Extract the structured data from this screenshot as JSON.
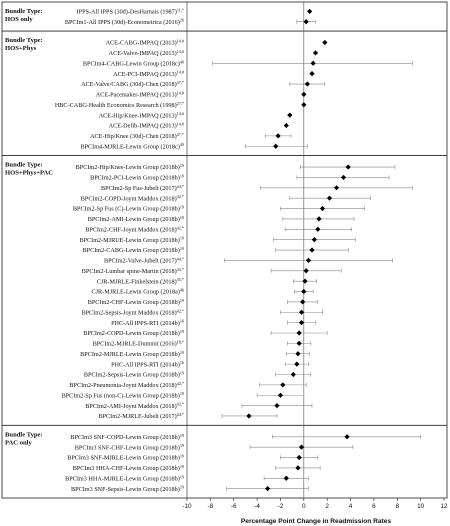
{
  "chart_data": {
    "type": "scatter",
    "subtype": "forest-plot",
    "xlabel": "Percentage Point Change in Readmission Rates",
    "xlim": [
      -10,
      12
    ],
    "xticks": [
      -10,
      -8,
      -6,
      -4,
      -2,
      0,
      2,
      4,
      6,
      8,
      10,
      12
    ],
    "reference_line_x": 0,
    "grid": false,
    "groups": [
      {
        "label_line1": "Bundle Type:",
        "label_line2": "HOS only",
        "rows": [
          {
            "label": "IPPS-All IPPS (30d)-DesHarnais (1987)",
            "sup": "11,*",
            "value": 0.5,
            "ci": null
          },
          {
            "label": "BPCIm1-All IPPS (30d)-Econometrica (2016)",
            "sup": "26",
            "value": 0.2,
            "ci": [
              -0.6,
              1.0
            ]
          }
        ]
      },
      {
        "label_line1": "Bundle Type:",
        "label_line2": "HOS+Phys",
        "rows": [
          {
            "label": "ACE-CABG-IMPAQ (2013)",
            "sup": "14,#",
            "value": 1.8,
            "ci": null
          },
          {
            "label": "ACE-Valve-IMPAQ (2013)",
            "sup": "14,#",
            "value": 1.0,
            "ci": null
          },
          {
            "label": "BPCIm4-CABG-Lewin Group (2018c)",
            "sup": "40",
            "value": 0.8,
            "ci": [
              -7.8,
              9.3
            ]
          },
          {
            "label": "ACE-PCI-IMPAQ (2013)",
            "sup": "14,#",
            "value": 0.7,
            "ci": null
          },
          {
            "label": "ACE-Valve/CABG (30d)-Chen (2018)",
            "sup": "47,*",
            "value": 0.3,
            "ci": [
              -1.2,
              1.8
            ]
          },
          {
            "label": "ACE-Pacemaker-IMPAQ (2013)",
            "sup": "14,#",
            "value": 0.0,
            "ci": null
          },
          {
            "label": "HBC-CABG-Health Economics Research (1998)",
            "sup": "27,*",
            "value": 0.0,
            "ci": null
          },
          {
            "label": "ACE-Hip/Knee-IMPAQ (2013)",
            "sup": "14,#",
            "value": -1.2,
            "ci": null
          },
          {
            "label": "ACE-Defib-IMPAQ (2013)",
            "sup": "14,#",
            "value": -1.5,
            "ci": null
          },
          {
            "label": "ACE-Hip/Knee (30d)-Chen (2018)",
            "sup": "47,*",
            "value": -2.2,
            "ci": [
              -3.3,
              -1.1
            ]
          },
          {
            "label": "BPCIm4-MJRLE-Lewin Group (2018c)",
            "sup": "40",
            "value": -2.4,
            "ci": [
              -5.0,
              0.3
            ]
          }
        ]
      },
      {
        "label_line1": "Bundle Type:",
        "label_line2": "HOS+Phys+PAC",
        "rows": [
          {
            "label": "BPCIm2-Hip/Knee-Lewin Group (2018b)",
            "sup": "19",
            "value": 3.8,
            "ci": [
              -0.3,
              7.8
            ]
          },
          {
            "label": "BPCIm2-PCI-Lewin Group (2018b)",
            "sup": "19",
            "value": 3.4,
            "ci": [
              -0.6,
              7.3
            ]
          },
          {
            "label": "BPCIm2-Sp Fus-Jubelt (2017)",
            "sup": "44,*",
            "value": 2.8,
            "ci": [
              -3.7,
              9.3
            ]
          },
          {
            "label": "BPCIm2-COPD-Joynt Maddox (2018)",
            "sup": "42,*",
            "value": 2.2,
            "ci": [
              -1.2,
              5.7
            ]
          },
          {
            "label": "BPCIm2-Sp Fus (C)-Lewin Group (2018b)",
            "sup": "19",
            "value": 1.6,
            "ci": [
              -2.0,
              5.2
            ]
          },
          {
            "label": "BPCIm2-AMI-Lewin Group (2018b)",
            "sup": "19",
            "value": 1.3,
            "ci": [
              -1.8,
              4.3
            ]
          },
          {
            "label": "BPCIm2-CHF-Joynt Maddox (2018)",
            "sup": "42,*",
            "value": 1.2,
            "ci": [
              -1.6,
              4.1
            ]
          },
          {
            "label": "BPCIm2-MJRUE-Lewin Group (2018b)",
            "sup": "19",
            "value": 0.9,
            "ci": [
              -2.6,
              4.4
            ]
          },
          {
            "label": "BPCIm2-CABG-Lewin Group (2018b)",
            "sup": "19",
            "value": 0.7,
            "ci": [
              -2.4,
              3.8
            ]
          },
          {
            "label": "BPCIm2-Valve-Jubelt (2017)",
            "sup": "44,*",
            "value": 0.4,
            "ci": [
              -6.8,
              7.6
            ]
          },
          {
            "label": "BPCIm2-Lumbar spine-Martin (2018)",
            "sup": "43,*",
            "value": 0.2,
            "ci": [
              -2.8,
              3.2
            ]
          },
          {
            "label": "CJR-MJRLE-Finkelstein (2018)",
            "sup": "45,*",
            "value": 0.1,
            "ci": [
              -0.9,
              1.1
            ]
          },
          {
            "label": "CJR-MJRLE-Lewin Group (2018a)",
            "sup": "46",
            "value": 0.0,
            "ci": [
              -0.8,
              0.8
            ]
          },
          {
            "label": "BPCIm2-CHF-Lewin Group (2018b)",
            "sup": "19",
            "value": -0.1,
            "ci": [
              -1.4,
              1.2
            ]
          },
          {
            "label": "BPCIm2-Sepsis-Joynt Maddox (2018)",
            "sup": "42,*",
            "value": -0.2,
            "ci": [
              -2.0,
              1.6
            ]
          },
          {
            "label": "PHC-All IPPS-RTI (2014b)",
            "sup": "16",
            "value": -0.2,
            "ci": [
              -1.4,
              1.0
            ]
          },
          {
            "label": "BPCIm2-COPD-Lewin Group (2018b)",
            "sup": "19",
            "value": -0.4,
            "ci": [
              -2.8,
              2.0
            ]
          },
          {
            "label": "BPCIm2-MJRLE-Dummit (2016)",
            "sup": "18,*",
            "value": -0.4,
            "ci": [
              -1.4,
              0.6
            ]
          },
          {
            "label": "BPCIm2-MJRLE-Lewin Group (2018b)",
            "sup": "19",
            "value": -0.5,
            "ci": [
              -1.5,
              0.5
            ]
          },
          {
            "label": "PHC-All IPPS-RTI (2014b)",
            "sup": "16",
            "value": -0.6,
            "ci": [
              -1.6,
              0.4
            ]
          },
          {
            "label": "BPCIm2-Sepsis-Lewin Group (2018b)",
            "sup": "19",
            "value": -0.9,
            "ci": [
              -2.4,
              0.6
            ]
          },
          {
            "label": "BPCIm2-Pneumonia-Joynt Maddox (2018)",
            "sup": "42,*",
            "value": -1.8,
            "ci": [
              -3.8,
              0.2
            ]
          },
          {
            "label": "BPCIm2-Sp Fus (non-C)-Lewin Group (2018b)",
            "sup": "19",
            "value": -2.0,
            "ci": [
              -4.0,
              0.0
            ]
          },
          {
            "label": "BPCIm2-AMI-Joynt Maddox (2018)",
            "sup": "42,*",
            "value": -2.3,
            "ci": [
              -5.3,
              0.7
            ]
          },
          {
            "label": "BPCIm2-MJRLE-Jubelt (2017)",
            "sup": "44,*",
            "value": -4.7,
            "ci": [
              -7.0,
              -2.3
            ]
          }
        ]
      },
      {
        "label_line1": "Bundle Type:",
        "label_line2": "PAC only",
        "rows": [
          {
            "label": "BPCIm3 SNF-COPD-Lewin Group (2018b)",
            "sup": "19",
            "value": 3.7,
            "ci": [
              -2.7,
              10.0
            ]
          },
          {
            "label": "BPCIm3 SNF-CHF-Lewin Group (2018b)",
            "sup": "19",
            "value": -0.2,
            "ci": [
              -4.6,
              4.2
            ]
          },
          {
            "label": "BPCIm3 SNF-MJRLE-Lewin Group (2018b)",
            "sup": "19",
            "value": -0.4,
            "ci": [
              -2.0,
              1.2
            ]
          },
          {
            "label": "BPCIm3 HHA-CHF-Lewin Group (2018b)",
            "sup": "19",
            "value": -0.5,
            "ci": [
              -2.4,
              1.4
            ]
          },
          {
            "label": "BPCIm3 HHA-MJRLE-Lewin Group (2018b)",
            "sup": "19",
            "value": -1.5,
            "ci": [
              -3.4,
              0.4
            ]
          },
          {
            "label": "BPCIm3 SNF-Sepsis-Lewin Group (2018b)",
            "sup": "19",
            "value": -3.1,
            "ci": [
              -6.6,
              0.4
            ]
          }
        ]
      }
    ]
  }
}
